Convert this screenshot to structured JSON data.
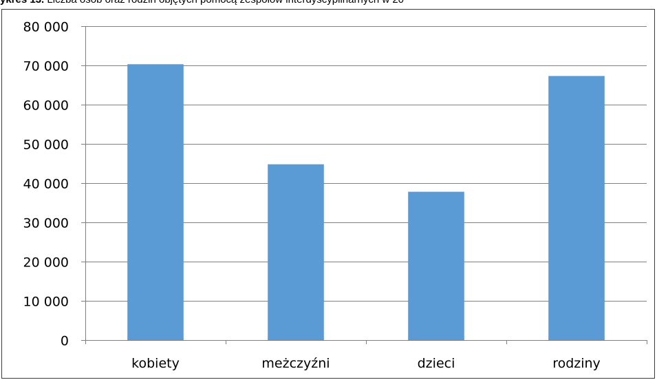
{
  "caption": {
    "lead": "ykres 13.",
    "text": " Liczba osób oraz rodzin objętych pomocą zespołów interdyscyplinarnych w 20"
  },
  "chart_data": {
    "type": "bar",
    "categories": [
      "kobiety",
      "meżczyźni",
      "dzieci",
      "rodziny"
    ],
    "values": [
      70300,
      44800,
      37800,
      67300
    ],
    "ylim": [
      0,
      80000
    ],
    "yticks": [
      0,
      10000,
      20000,
      30000,
      40000,
      50000,
      60000,
      70000,
      80000
    ],
    "ytick_labels": [
      "0",
      "10 000",
      "20 000",
      "30 000",
      "40 000",
      "50 000",
      "60 000",
      "70 000",
      "80 000"
    ],
    "grid": true,
    "bar_color": "#5b9bd5",
    "grid_color": "#7f7f7f"
  }
}
